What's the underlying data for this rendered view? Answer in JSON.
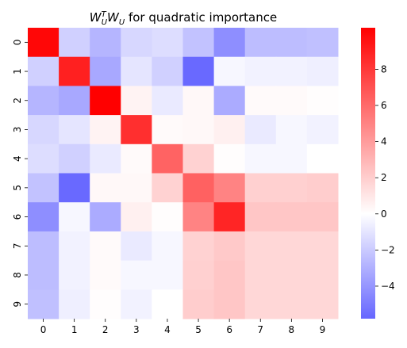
{
  "chart_data": {
    "type": "heatmap",
    "title_main": "W",
    "title_sup": "T",
    "title_sub": "U",
    "title_mid": "W",
    "title_sub2": "U",
    "title_rest": " for quadratic importance",
    "x_categories": [
      "0",
      "1",
      "2",
      "3",
      "4",
      "5",
      "6",
      "7",
      "8",
      "9"
    ],
    "y_categories": [
      "0",
      "1",
      "2",
      "3",
      "4",
      "5",
      "6",
      "7",
      "8",
      "9"
    ],
    "values": [
      [
        10.0,
        -1.8,
        -2.8,
        -1.5,
        -1.3,
        -2.3,
        -4.3,
        -2.5,
        -2.5,
        -2.4
      ],
      [
        -1.8,
        9.0,
        -3.3,
        -1.0,
        -1.8,
        -5.7,
        -0.3,
        -0.5,
        -0.5,
        -0.6
      ],
      [
        -2.8,
        -3.3,
        10.3,
        0.5,
        -0.8,
        0.3,
        -3.2,
        0.2,
        0.2,
        0.1
      ],
      [
        -1.5,
        -1.0,
        0.5,
        8.4,
        0.2,
        0.3,
        0.6,
        -0.8,
        -0.3,
        -0.5
      ],
      [
        -1.3,
        -1.8,
        -0.8,
        0.2,
        6.3,
        1.8,
        0.1,
        -0.3,
        -0.3,
        0.0
      ],
      [
        -2.3,
        -5.7,
        0.3,
        0.3,
        1.8,
        6.4,
        5.0,
        1.9,
        1.9,
        2.0
      ],
      [
        -4.3,
        -0.3,
        -3.2,
        0.6,
        0.1,
        5.0,
        8.8,
        2.3,
        2.3,
        2.3
      ],
      [
        -2.5,
        -0.5,
        0.2,
        -0.8,
        -0.3,
        1.8,
        2.2,
        1.6,
        1.6,
        1.6
      ],
      [
        -2.5,
        -0.5,
        0.2,
        -0.3,
        -0.3,
        1.9,
        2.3,
        1.6,
        1.6,
        1.6
      ],
      [
        -2.4,
        -0.6,
        0.1,
        -0.5,
        0.0,
        2.0,
        2.3,
        1.6,
        1.6,
        1.6
      ]
    ],
    "vmin": -5.8,
    "vmax": 10.3,
    "colorbar_ticks": [
      8,
      6,
      4,
      2,
      0,
      -2,
      -4
    ],
    "colorbar_tick_labels": [
      "8",
      "6",
      "4",
      "2",
      "0",
      "−2",
      "−4"
    ],
    "colormap": {
      "low": "#6666ff",
      "mid": "#ffffff",
      "high": "#ff0000"
    }
  }
}
